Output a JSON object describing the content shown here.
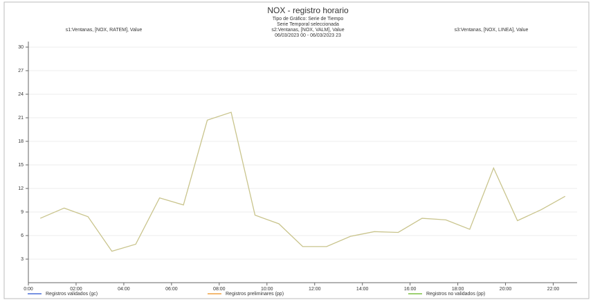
{
  "chart_data": {
    "type": "line",
    "title": "NOX - registro horario",
    "subtitle": [
      "Tipo de Gráfico: Serie de Tiempo",
      "Serie Temporal seleccionada",
      "s2:Ventanas, [NOX, VALM], Value",
      "06/03/2023 00 - 06/03/2023 23"
    ],
    "left_label": "s1:Ventanas, [NOX, RATEM], Value",
    "right_label": "s3:Ventanas, [NOX, LINEA], Value",
    "x": [
      0.5,
      1.5,
      2.5,
      3.5,
      4.5,
      5.5,
      6.5,
      7.5,
      8.5,
      9.5,
      10.5,
      11.5,
      12.5,
      13.5,
      14.5,
      15.5,
      16.5,
      17.5,
      18.5,
      19.5,
      20.5,
      21.5,
      22.5
    ],
    "series": [
      {
        "color": "#c9c48c",
        "values": [
          8.2,
          9.5,
          8.4,
          4.0,
          4.9,
          10.8,
          9.9,
          20.7,
          21.7,
          8.6,
          7.5,
          4.6,
          4.6,
          5.9,
          6.5,
          6.4,
          8.2,
          8.0,
          6.8,
          14.6,
          7.9,
          9.3,
          11.0
        ]
      }
    ],
    "xlim": [
      0,
      23
    ],
    "xticks": [
      {
        "value": 0,
        "label": "0:00"
      },
      {
        "value": 2,
        "label": "02:00"
      },
      {
        "value": 4,
        "label": "04:00"
      },
      {
        "value": 6,
        "label": "06:00"
      },
      {
        "value": 8,
        "label": "08:00"
      },
      {
        "value": 10,
        "label": "10:00"
      },
      {
        "value": 12,
        "label": "12:00"
      },
      {
        "value": 14,
        "label": "14:00"
      },
      {
        "value": 16,
        "label": "16:00"
      },
      {
        "value": 18,
        "label": "18:00"
      },
      {
        "value": 20,
        "label": "20:00"
      },
      {
        "value": 22,
        "label": "22:00"
      }
    ],
    "ylim": [
      0,
      30
    ],
    "yticks": [
      3,
      6,
      9,
      12,
      15,
      18,
      21,
      24,
      27,
      30
    ],
    "grid": true,
    "legend": [
      {
        "name": "Registros validados (gc)",
        "color": "#4a6fd8"
      },
      {
        "name": "Registros preliminares (pp)",
        "color": "#f0a040"
      },
      {
        "name": "Registros no validados (pp)",
        "color": "#7cc040"
      }
    ]
  }
}
